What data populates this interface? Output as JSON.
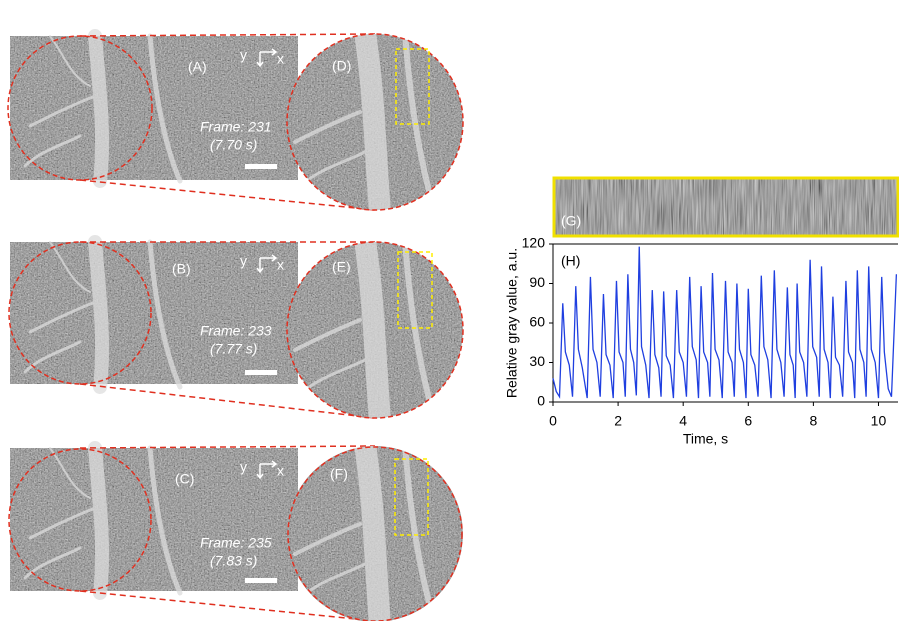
{
  "panels": [
    {
      "label": "(A)",
      "frame": "Frame: 231",
      "time": "(7.70 s)",
      "axis_y": "y",
      "axis_x": "x"
    },
    {
      "label": "(B)",
      "frame": "Frame: 233",
      "time": "(7.77 s)",
      "axis_y": "y",
      "axis_x": "x"
    },
    {
      "label": "(C)",
      "frame": "Frame: 235",
      "time": "(7.83 s)",
      "axis_y": "y",
      "axis_x": "x"
    }
  ],
  "zoom_panels": [
    {
      "label": "(D)"
    },
    {
      "label": "(E)"
    },
    {
      "label": "(F)"
    }
  ],
  "kymograph": {
    "label": "(G)"
  },
  "chart_data": {
    "type": "line",
    "label": "(H)",
    "x_label": "Time, s",
    "y_label": "Relative gray value, a.u.",
    "xlim": [
      0,
      10.6
    ],
    "ylim": [
      0,
      120
    ],
    "xticks": [
      0,
      2,
      4,
      6,
      8,
      10
    ],
    "yticks": [
      0,
      30,
      60,
      90,
      120
    ],
    "x": [
      0,
      0.1,
      0.2,
      0.3,
      0.38,
      0.5,
      0.6,
      0.7,
      0.78,
      0.9,
      1.05,
      1.15,
      1.23,
      1.35,
      1.45,
      1.55,
      1.63,
      1.75,
      1.85,
      1.95,
      2.03,
      2.15,
      2.22,
      2.3,
      2.38,
      2.48,
      2.56,
      2.65,
      2.72,
      2.85,
      2.95,
      3.05,
      3.13,
      3.25,
      3.32,
      3.4,
      3.48,
      3.6,
      3.7,
      3.8,
      3.88,
      4.0,
      4.1,
      4.2,
      4.28,
      4.4,
      4.47,
      4.55,
      4.63,
      4.75,
      4.82,
      4.9,
      4.98,
      5.1,
      5.2,
      5.3,
      5.38,
      5.5,
      5.57,
      5.65,
      5.73,
      5.85,
      5.93,
      6.0,
      6.08,
      6.2,
      6.3,
      6.4,
      6.48,
      6.6,
      6.7,
      6.8,
      6.88,
      7.0,
      7.1,
      7.2,
      7.28,
      7.38,
      7.44,
      7.5,
      7.58,
      7.7,
      7.8,
      7.9,
      7.98,
      8.1,
      8.18,
      8.25,
      8.33,
      8.45,
      8.52,
      8.6,
      8.68,
      8.8,
      8.9,
      9.0,
      9.08,
      9.2,
      9.27,
      9.35,
      9.43,
      9.55,
      9.62,
      9.7,
      9.78,
      9.9,
      10.0,
      10.1,
      10.18,
      10.3,
      10.4,
      10.55
    ],
    "series": [
      {
        "color": "#1f3fe0",
        "values": [
          18,
          8,
          4,
          75,
          38,
          28,
          4,
          88,
          40,
          26,
          3,
          95,
          40,
          30,
          4,
          82,
          36,
          28,
          3,
          92,
          38,
          30,
          4,
          97,
          40,
          30,
          5,
          118,
          42,
          28,
          3,
          85,
          36,
          26,
          4,
          84,
          35,
          28,
          3,
          85,
          38,
          30,
          4,
          95,
          42,
          32,
          3,
          88,
          38,
          30,
          4,
          98,
          40,
          32,
          3,
          92,
          38,
          30,
          4,
          90,
          40,
          30,
          3,
          86,
          36,
          28,
          4,
          96,
          42,
          32,
          3,
          100,
          40,
          30,
          4,
          87,
          36,
          28,
          3,
          90,
          38,
          30,
          4,
          108,
          42,
          34,
          4,
          103,
          40,
          30,
          3,
          80,
          34,
          28,
          4,
          92,
          38,
          30,
          3,
          100,
          40,
          30,
          4,
          103,
          40,
          30,
          3,
          95,
          38,
          10,
          4,
          97
        ]
      }
    ]
  }
}
